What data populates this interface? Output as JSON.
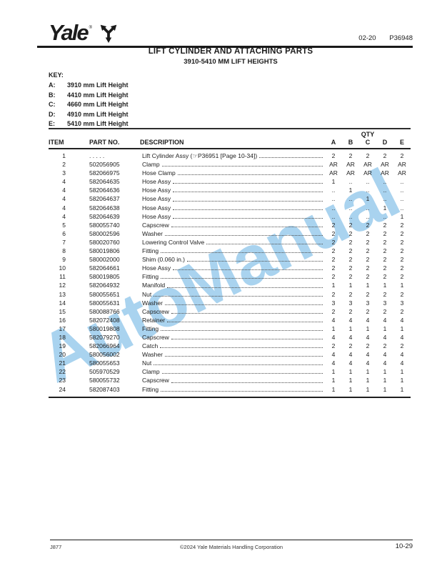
{
  "header": {
    "brand": "Yale",
    "brand_reg": "®",
    "doc_code": "02-20",
    "doc_number": "P36948"
  },
  "title": {
    "line1": "LIFT CYLINDER AND ATTACHING PARTS",
    "line2": "3910-5410 MM LIFT HEIGHTS"
  },
  "key": {
    "label": "KEY:",
    "entries": [
      {
        "code": "A:",
        "text": "3910 mm Lift Height"
      },
      {
        "code": "B:",
        "text": "4410 mm Lift Height"
      },
      {
        "code": "C:",
        "text": "4660 mm Lift Height"
      },
      {
        "code": "D:",
        "text": "4910 mm Lift Height"
      },
      {
        "code": "E:",
        "text": "5410 mm Lift Height"
      }
    ]
  },
  "table": {
    "headers": {
      "item": "ITEM",
      "part_no": "PART NO.",
      "description": "DESCRIPTION",
      "qty_group": "QTY",
      "qty_cols": [
        "A",
        "B",
        "C",
        "D",
        "E"
      ]
    },
    "rows": [
      {
        "item": "1",
        "part_no": ". . . . .",
        "description": "Lift Cylinder Assy (☞P36951 [Page 10-34])",
        "qty": [
          "2",
          "2",
          "2",
          "2",
          "2"
        ]
      },
      {
        "item": "2",
        "part_no": "502056905",
        "description": "Clamp",
        "qty": [
          "AR",
          "AR",
          "AR",
          "AR",
          "AR"
        ]
      },
      {
        "item": "3",
        "part_no": "582066975",
        "description": "Hose Clamp",
        "qty": [
          "AR",
          "AR",
          "AR",
          "AR",
          "AR"
        ]
      },
      {
        "item": "4",
        "part_no": "582064635",
        "description": "Hose Assy",
        "qty": [
          "1",
          "..",
          "..",
          "..",
          ".."
        ]
      },
      {
        "item": "4",
        "part_no": "582064636",
        "description": "Hose Assy",
        "qty": [
          "..",
          "1",
          "..",
          "..",
          ".."
        ]
      },
      {
        "item": "4",
        "part_no": "582064637",
        "description": "Hose Assy",
        "qty": [
          "..",
          "..",
          "1",
          "..",
          ".."
        ]
      },
      {
        "item": "4",
        "part_no": "582064638",
        "description": "Hose Assy",
        "qty": [
          "..",
          "..",
          "..",
          "1",
          ".."
        ]
      },
      {
        "item": "4",
        "part_no": "582064639",
        "description": "Hose Assy",
        "qty": [
          "..",
          "..",
          "..",
          "..",
          "1"
        ]
      },
      {
        "item": "5",
        "part_no": "580055740",
        "description": "Capscrew",
        "qty": [
          "2",
          "2",
          "2",
          "2",
          "2"
        ]
      },
      {
        "item": "6",
        "part_no": "580002596",
        "description": "Washer",
        "qty": [
          "2",
          "2",
          "2",
          "2",
          "2"
        ]
      },
      {
        "item": "7",
        "part_no": "580020760",
        "description": "Lowering Control Valve",
        "qty": [
          "2",
          "2",
          "2",
          "2",
          "2"
        ]
      },
      {
        "item": "8",
        "part_no": "580019806",
        "description": "Fitting",
        "qty": [
          "2",
          "2",
          "2",
          "2",
          "2"
        ]
      },
      {
        "item": "9",
        "part_no": "580002000",
        "description": "Shim (0.060 in.)",
        "qty": [
          "2",
          "2",
          "2",
          "2",
          "2"
        ]
      },
      {
        "item": "10",
        "part_no": "582064661",
        "description": "Hose Assy",
        "qty": [
          "2",
          "2",
          "2",
          "2",
          "2"
        ]
      },
      {
        "item": "11",
        "part_no": "580019805",
        "description": "Fitting",
        "qty": [
          "2",
          "2",
          "2",
          "2",
          "2"
        ]
      },
      {
        "item": "12",
        "part_no": "582064932",
        "description": "Manifold",
        "qty": [
          "1",
          "1",
          "1",
          "1",
          "1"
        ]
      },
      {
        "item": "13",
        "part_no": "580055651",
        "description": "Nut",
        "qty": [
          "2",
          "2",
          "2",
          "2",
          "2"
        ]
      },
      {
        "item": "14",
        "part_no": "580055631",
        "description": "Washer",
        "qty": [
          "3",
          "3",
          "3",
          "3",
          "3"
        ]
      },
      {
        "item": "15",
        "part_no": "580088766",
        "description": "Capscrew",
        "qty": [
          "2",
          "2",
          "2",
          "2",
          "2"
        ]
      },
      {
        "item": "16",
        "part_no": "582072408",
        "description": "Retainer",
        "qty": [
          "4",
          "4",
          "4",
          "4",
          "4"
        ]
      },
      {
        "item": "17",
        "part_no": "580019808",
        "description": "Fitting",
        "qty": [
          "1",
          "1",
          "1",
          "1",
          "1"
        ]
      },
      {
        "item": "18",
        "part_no": "582079270",
        "description": "Capscrew",
        "qty": [
          "4",
          "4",
          "4",
          "4",
          "4"
        ]
      },
      {
        "item": "19",
        "part_no": "582066964",
        "description": "Catch",
        "qty": [
          "2",
          "2",
          "2",
          "2",
          "2"
        ]
      },
      {
        "item": "20",
        "part_no": "580056002",
        "description": "Washer",
        "qty": [
          "4",
          "4",
          "4",
          "4",
          "4"
        ]
      },
      {
        "item": "21",
        "part_no": "580055653",
        "description": "Nut",
        "qty": [
          "4",
          "4",
          "4",
          "4",
          "4"
        ]
      },
      {
        "item": "22",
        "part_no": "505970529",
        "description": "Clamp",
        "qty": [
          "1",
          "1",
          "1",
          "1",
          "1"
        ]
      },
      {
        "item": "23",
        "part_no": "580055732",
        "description": "Capscrew",
        "qty": [
          "1",
          "1",
          "1",
          "1",
          "1"
        ]
      },
      {
        "item": "24",
        "part_no": "582087403",
        "description": "Fitting",
        "qty": [
          "1",
          "1",
          "1",
          "1",
          "1"
        ]
      }
    ]
  },
  "watermark": {
    "text": "AutoManual",
    "color": "#a9d3ef"
  },
  "footer": {
    "left": "J877",
    "center": "©2024 Yale Materials Handling Corporation",
    "right": "10-29"
  }
}
